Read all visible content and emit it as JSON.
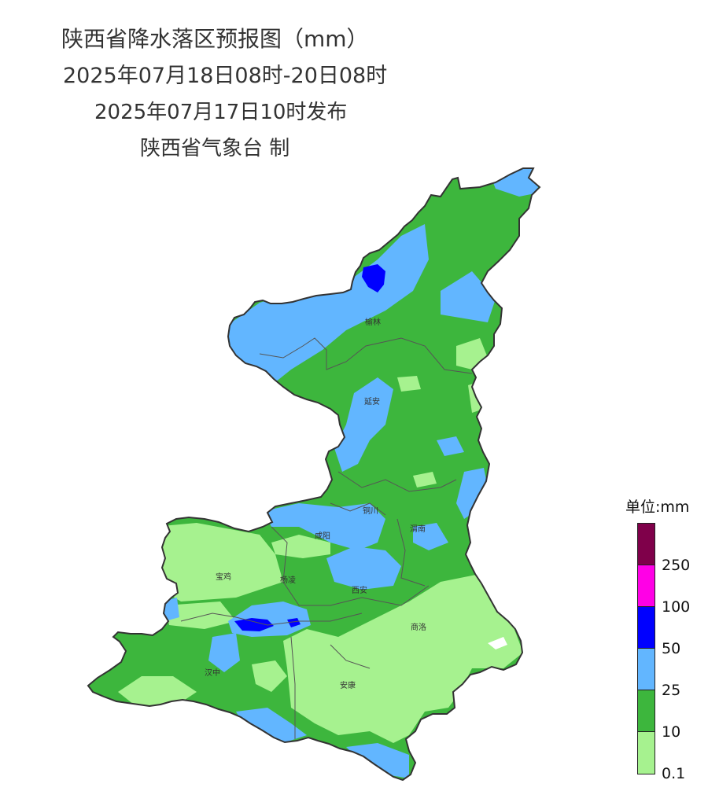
{
  "header": {
    "title": "陕西省降水落区预报图（mm）",
    "period": "2025年07月18日08时-20日08时",
    "issued": "2025年07月17日10时发布",
    "producer": "陕西省气象台 制"
  },
  "map": {
    "cities": [
      "榆林",
      "延安",
      "铜川",
      "渭南",
      "咸阳",
      "宝鸡",
      "杨凌",
      "西安",
      "商洛",
      "汉中",
      "安康"
    ]
  },
  "legend": {
    "title": "单位:mm",
    "ticks": [
      "250",
      "100",
      "50",
      "25",
      "10",
      "0.1"
    ],
    "colors": {
      "250+": "#7f004a",
      "100-250": "#ff00e6",
      "50-100": "#0000ff",
      "25-50": "#62b6ff",
      "10-25": "#3db63d",
      "0.1-10": "#a6f28f"
    }
  }
}
